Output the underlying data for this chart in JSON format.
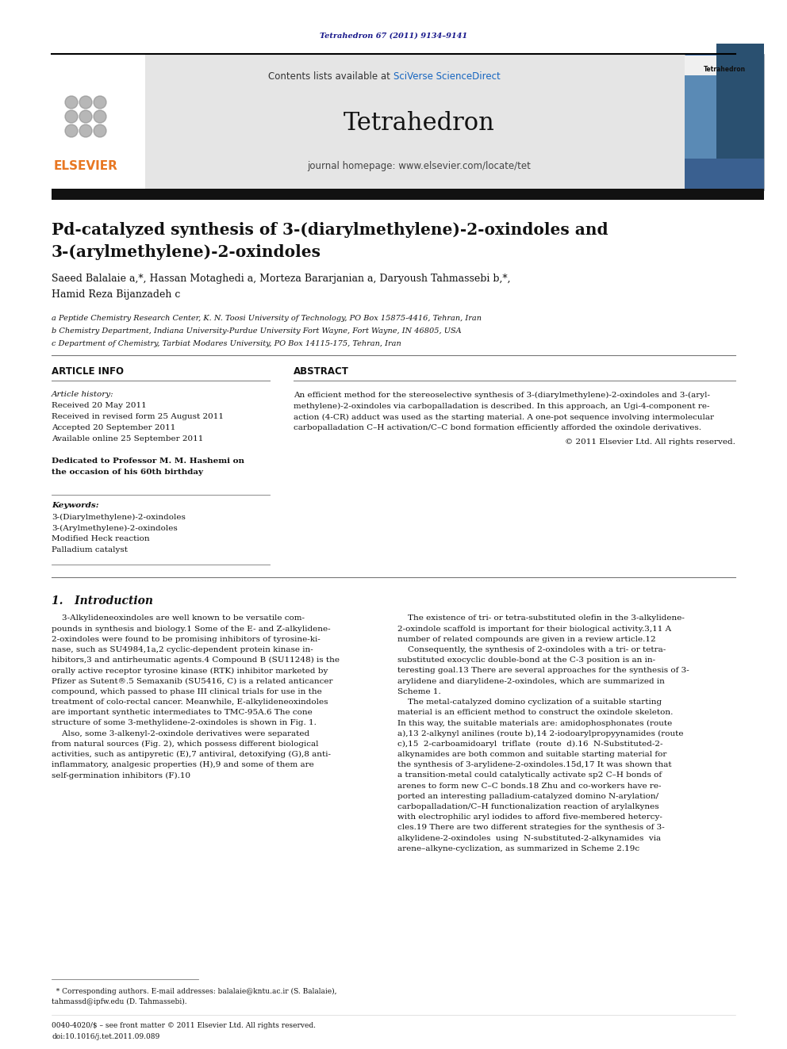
{
  "page_width": 9.92,
  "page_height": 13.23,
  "bg_color": "#ffffff",
  "journal_ref": "Tetrahedron 67 (2011) 9134–9141",
  "journal_ref_color": "#1a1a8c",
  "contents_text": "Contents lists available at ",
  "sciverse_text": "SciVerse ScienceDirect",
  "sciverse_color": "#1565c0",
  "journal_name": "Tetrahedron",
  "homepage_text": "journal homepage: www.elsevier.com/locate/tet",
  "header_bg": "#e5e5e5",
  "dark_bar_color": "#111111",
  "elsevier_color": "#e87722",
  "title_line1": "Pd-catalyzed synthesis of 3-(diarylmethylene)-2-oxindoles and",
  "title_line2": "3-(arylmethylene)-2-oxindoles",
  "authors_line1": "Saeed Balalaie a,*, Hassan Motaghedi a, Morteza Bararjanian a, Daryoush Tahmassebi b,*,",
  "authors_line2": "Hamid Reza Bijanzadeh c",
  "affil_a": "a Peptide Chemistry Research Center, K. N. Toosi University of Technology, PO Box 15875-4416, Tehran, Iran",
  "affil_b": "b Chemistry Department, Indiana University-Purdue University Fort Wayne, Fort Wayne, IN 46805, USA",
  "affil_c": "c Department of Chemistry, Tarbiat Modares University, PO Box 14115-175, Tehran, Iran",
  "article_info_title": "ARTICLE INFO",
  "abstract_title": "ABSTRACT",
  "article_history_label": "Article history:",
  "received1": "Received 20 May 2011",
  "received2": "Received in revised form 25 August 2011",
  "accepted": "Accepted 20 September 2011",
  "available": "Available online 25 September 2011",
  "dedicated1": "Dedicated to Professor M. M. Hashemi on",
  "dedicated2": "the occasion of his 60th birthday",
  "keywords_label": "Keywords:",
  "kw1": "3-(Diarylmethylene)-2-oxindoles",
  "kw2": "3-(Arylmethylene)-2-oxindoles",
  "kw3": "Modified Heck reaction",
  "kw4": "Palladium catalyst",
  "abstract_line1": "An efficient method for the stereoselective synthesis of 3-(diarylmethylene)-2-oxindoles and 3-(aryl-",
  "abstract_line2": "methylene)-2-oxindoles via carbopalladation is described. In this approach, an Ugi-4-component re-",
  "abstract_line3": "action (4-CR) adduct was used as the starting material. A one-pot sequence involving intermolecular",
  "abstract_line4": "carbopalladation C–H activation/C–C bond formation efficiently afforded the oxindole derivatives.",
  "copyright": "© 2011 Elsevier Ltd. All rights reserved.",
  "intro_title": "1.   Introduction",
  "intro_indent": "    ",
  "col1_lines": [
    "    3-Alkylideneoxindoles are well known to be versatile com-",
    "pounds in synthesis and biology.1 Some of the E- and Z-alkylidene-",
    "2-oxindoles were found to be promising inhibitors of tyrosine-ki-",
    "nase, such as SU4984,1a,2 cyclic-dependent protein kinase in-",
    "hibitors,3 and antirheumatic agents.4 Compound B (SU11248) is the",
    "orally active receptor tyrosine kinase (RTK) inhibitor marketed by",
    "Pfizer as Sutent®.5 Semaxanib (SU5416, C) is a related anticancer",
    "compound, which passed to phase III clinical trials for use in the",
    "treatment of colo-rectal cancer. Meanwhile, E-alkylideneoxindoles",
    "are important synthetic intermediates to TMC-95A.6 The cone",
    "structure of some 3-methylidene-2-oxindoles is shown in Fig. 1.",
    "    Also, some 3-alkenyl-2-oxindole derivatives were separated",
    "from natural sources (Fig. 2), which possess different biological",
    "activities, such as antipyretic (E),7 antiviral, detoxifying (G),8 anti-",
    "inflammatory, analgesic properties (H),9 and some of them are",
    "self-germination inhibitors (F).10"
  ],
  "col2_lines": [
    "    The existence of tri- or tetra-substituted olefin in the 3-alkylidene-",
    "2-oxindole scaffold is important for their biological activity.3,11 A",
    "number of related compounds are given in a review article.12",
    "    Consequently, the synthesis of 2-oxindoles with a tri- or tetra-",
    "substituted exocyclic double-bond at the C-3 position is an in-",
    "teresting goal.13 There are several approaches for the synthesis of 3-",
    "arylidene and diarylidene-2-oxindoles, which are summarized in",
    "Scheme 1.",
    "    The metal-catalyzed domino cyclization of a suitable starting",
    "material is an efficient method to construct the oxindole skeleton.",
    "In this way, the suitable materials are: amidophosphonates (route",
    "a),13 2-alkynyl anilines (route b),14 2-iodoarylpropyynamides (route",
    "c),15  2-carboamidoaryl  triflate  (route  d).16  N-Substituted-2-",
    "alkynamides are both common and suitable starting material for",
    "the synthesis of 3-arylidene-2-oxindoles.15d,17 It was shown that",
    "a transition-metal could catalytically activate sp2 C–H bonds of",
    "arenes to form new C–C bonds.18 Zhu and co-workers have re-",
    "ported an interesting palladium-catalyzed domino N-arylation/",
    "carbopalladation/C–H functionalization reaction of arylalkynes",
    "with electrophilic aryl iodides to afford five-membered hetercy-",
    "cles.19 There are two different strategies for the synthesis of 3-",
    "alkylidene-2-oxindoles  using  N-substituted-2-alkynamides  via",
    "arene–alkyne-cyclization, as summarized in Scheme 2.19c"
  ],
  "footnote1": "  * Corresponding authors. E-mail addresses: balalaie@kntu.ac.ir (S. Balalaie),",
  "footnote2": "tahmassd@ipfw.edu (D. Tahmassebi).",
  "issn_line": "0040-4020/$ – see front matter © 2011 Elsevier Ltd. All rights reserved.",
  "doi_line": "doi:10.1016/j.tet.2011.09.089"
}
